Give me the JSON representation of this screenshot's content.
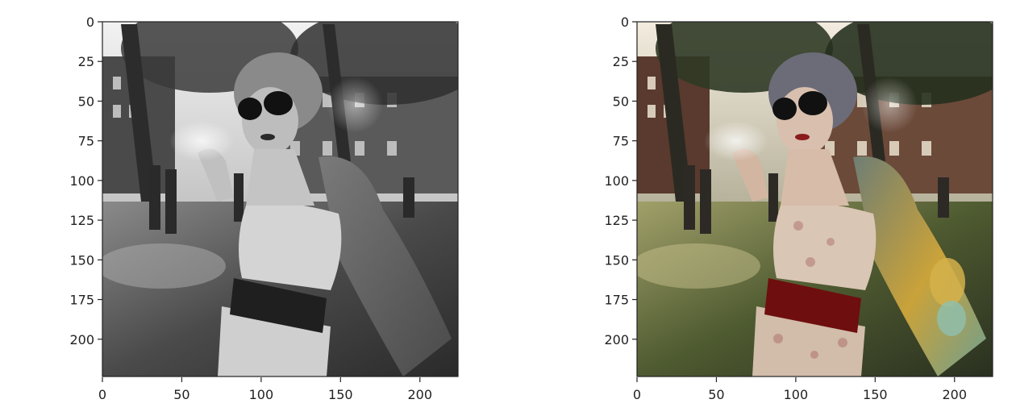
{
  "figure": {
    "panels": [
      {
        "name": "grayscale",
        "image_kind": "grayscale photograph",
        "x_ticks": [
          0,
          50,
          100,
          150,
          200
        ],
        "y_ticks": [
          0,
          25,
          50,
          75,
          100,
          125,
          150,
          175,
          200
        ],
        "xlim": [
          0,
          224
        ],
        "ylim": [
          224,
          0
        ]
      },
      {
        "name": "colorized",
        "image_kind": "colorized photograph",
        "x_ticks": [
          0,
          50,
          100,
          150,
          200
        ],
        "y_ticks": [
          0,
          25,
          50,
          75,
          100,
          125,
          150,
          175,
          200
        ],
        "xlim": [
          0,
          224
        ],
        "ylim": [
          224,
          0
        ]
      }
    ],
    "colors": {
      "axis": "#222222",
      "background": "#ffffff",
      "gray_sky": "#e8e8e8",
      "gray_tree": "#3a3a3a",
      "gray_grass": "#5e5e5e",
      "gray_dress": "#d6d6d6",
      "gray_belt": "#1f1f1f",
      "gray_skin": "#bdbdbd",
      "color_sky": "#efe9dc",
      "color_tree": "#2f3a25",
      "color_grass": "#58653a",
      "color_building": "#6b4a3a",
      "color_dress": "#d9c6b6",
      "color_belt": "#6e0e0e",
      "color_skin": "#d8bfae",
      "color_tattoo_yellow": "#c9a23a",
      "color_tattoo_teal": "#6f9f8f",
      "color_lips": "#8a1c1c"
    }
  }
}
